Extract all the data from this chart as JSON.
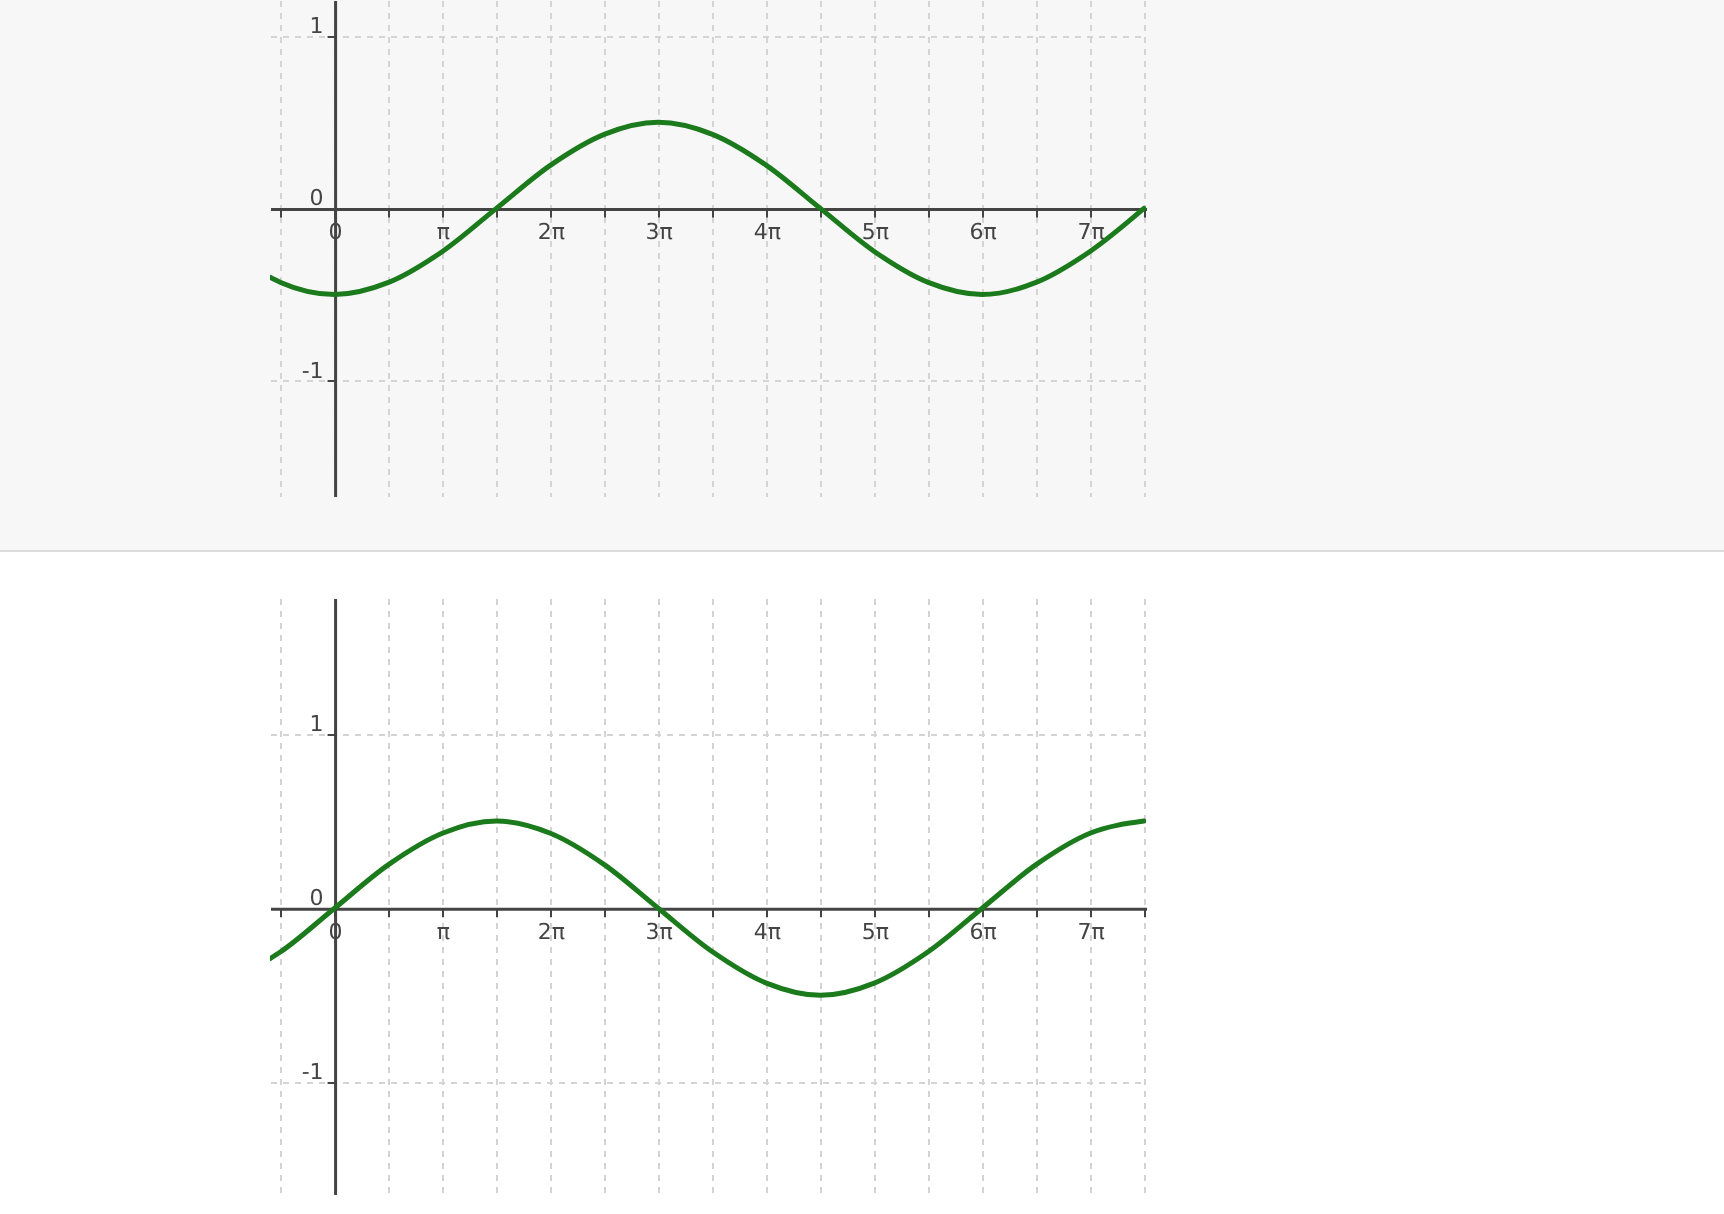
{
  "chart_data": [
    {
      "type": "line",
      "xlim": [
        -1.88,
        23.62
      ],
      "ylim": [
        -1.67,
        1.21
      ],
      "grid": true,
      "marker": "none",
      "line_style": "solid",
      "xticks": [
        {
          "value": -1.57,
          "label": null
        },
        0,
        {
          "value": 1.57,
          "label": null
        },
        {
          "value": 3.14,
          "label": "π"
        },
        {
          "value": 4.71,
          "label": null
        },
        {
          "value": 6.28,
          "label": "2π"
        },
        {
          "value": 7.85,
          "label": null
        },
        {
          "value": 9.42,
          "label": "3π"
        },
        {
          "value": 11.0,
          "label": null
        },
        {
          "value": 12.57,
          "label": "4π"
        },
        {
          "value": 14.14,
          "label": null
        },
        {
          "value": 15.71,
          "label": "5π"
        },
        {
          "value": 17.28,
          "label": null
        },
        {
          "value": 18.85,
          "label": "6π"
        },
        {
          "value": 20.42,
          "label": null
        },
        {
          "value": 21.99,
          "label": "7π"
        },
        {
          "value": 23.56,
          "label": null
        }
      ],
      "yticks": [
        -1,
        0,
        1
      ],
      "series": [
        {
          "color": "#1b7a1b",
          "x": [
            -1.88,
            -1.57,
            0,
            1.57,
            3.14,
            4.71,
            6.28,
            7.85,
            9.42,
            11.0,
            12.57,
            14.14,
            15.71,
            17.28,
            18.85,
            20.42,
            21.99,
            23.56
          ],
          "values": [
            -0.4,
            -0.43,
            -0.5,
            -0.43,
            -0.25,
            0,
            0.25,
            0.43,
            0.5,
            0.43,
            0.25,
            0,
            -0.25,
            -0.43,
            -0.5,
            -0.43,
            -0.25,
            0
          ]
        }
      ]
    },
    {
      "type": "line",
      "xlim": [
        -1.88,
        23.62
      ],
      "ylim": [
        -1.64,
        1.78
      ],
      "grid": true,
      "marker": "none",
      "line_style": "solid",
      "xticks": [
        {
          "value": -1.57,
          "label": null
        },
        0,
        {
          "value": 1.57,
          "label": null
        },
        {
          "value": 3.14,
          "label": "π"
        },
        {
          "value": 4.71,
          "label": null
        },
        {
          "value": 6.28,
          "label": "2π"
        },
        {
          "value": 7.85,
          "label": null
        },
        {
          "value": 9.42,
          "label": "3π"
        },
        {
          "value": 11.0,
          "label": null
        },
        {
          "value": 12.57,
          "label": "4π"
        },
        {
          "value": 14.14,
          "label": null
        },
        {
          "value": 15.71,
          "label": "5π"
        },
        {
          "value": 17.28,
          "label": null
        },
        {
          "value": 18.85,
          "label": "6π"
        },
        {
          "value": 20.42,
          "label": null
        },
        {
          "value": 21.99,
          "label": "7π"
        },
        {
          "value": 23.56,
          "label": null
        }
      ],
      "yticks": [
        -1,
        0,
        1
      ],
      "series": [
        {
          "color": "#1b7a1b",
          "x": [
            -1.88,
            -1.57,
            0,
            1.57,
            3.14,
            4.71,
            6.28,
            7.85,
            9.42,
            11.0,
            12.57,
            14.14,
            15.71,
            17.28,
            18.85,
            20.42,
            21.99,
            23.56
          ],
          "values": [
            -0.29,
            -0.25,
            0,
            0.25,
            0.43,
            0.5,
            0.43,
            0.25,
            0,
            -0.25,
            -0.43,
            -0.5,
            -0.43,
            -0.25,
            0,
            0.25,
            0.43,
            0.5
          ]
        }
      ]
    }
  ]
}
